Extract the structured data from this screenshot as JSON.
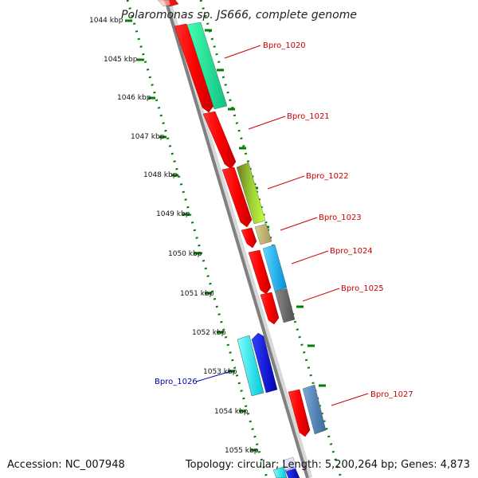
{
  "title": "Polaromonas sp. JS666, complete genome",
  "scale": {
    "ticks": [
      "1044 kbp",
      "1045 kbp",
      "1046 kbp",
      "1047 kbp",
      "1048 kbp",
      "1049 kbp",
      "1050 kbp",
      "1051 kbp",
      "1052 kbp",
      "1053 kbp",
      "1054 kbp",
      "1055 kbp"
    ]
  },
  "genes": [
    {
      "label": "Bpro_1020",
      "strand": "+",
      "color": "#cc0000"
    },
    {
      "label": "Bpro_1021",
      "strand": "+",
      "color": "#cc0000"
    },
    {
      "label": "Bpro_1022",
      "strand": "+",
      "color": "#cc0000"
    },
    {
      "label": "Bpro_1023",
      "strand": "+",
      "color": "#cc0000"
    },
    {
      "label": "Bpro_1024",
      "strand": "+",
      "color": "#cc0000"
    },
    {
      "label": "Bpro_1025",
      "strand": "+",
      "color": "#cc0000"
    },
    {
      "label": "Bpro_1026",
      "strand": "-",
      "color": "#0000aa"
    },
    {
      "label": "Bpro_1027",
      "strand": "+",
      "color": "#cc0000"
    }
  ],
  "footer": {
    "accession": "Accession: NC_007948",
    "summary": "Topology: circular; Length: 5,200,264 bp; Genes: 4,873"
  },
  "colors": {
    "tick_green": "#008000",
    "backbone": "#808080",
    "forward_gene": "#ff0000",
    "reverse_gene": "#0000ff"
  }
}
